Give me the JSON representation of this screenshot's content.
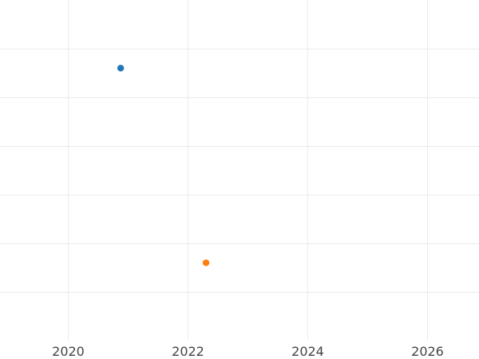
{
  "chart_data": {
    "type": "scatter",
    "title": "",
    "xlabel": "",
    "ylabel": "",
    "x_axis": "date",
    "x_ticks": [
      "2020",
      "2022",
      "2024",
      "2026"
    ],
    "xlim": [
      "2018-11-15",
      "2026-11-15"
    ],
    "ylim": [
      0,
      7
    ],
    "y_gridlines": [
      1,
      2,
      3,
      4,
      5,
      6
    ],
    "grid": true,
    "y_tick_labels_visible": false,
    "series": [
      {
        "color": "#1f77b4",
        "points": [
          {
            "x": "2020-11-20",
            "y": 5.6
          }
        ]
      },
      {
        "color": "#ff7f0e",
        "points": [
          {
            "x": "2022-04-25",
            "y": 1.6
          }
        ]
      }
    ]
  }
}
